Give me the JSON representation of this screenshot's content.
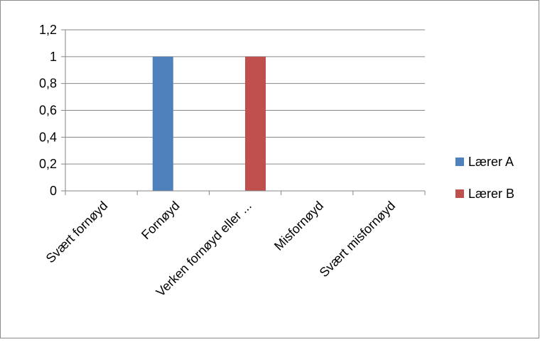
{
  "chart_data": {
    "type": "bar",
    "title": "",
    "xlabel": "",
    "ylabel": "",
    "categories": [
      "Svært fornøyd",
      "Fornøyd",
      "Verken fornøyd eller ...",
      "Misfornøyd",
      "Svært misfornøyd"
    ],
    "series": [
      {
        "name": "Lærer A",
        "color": "#4f81bd",
        "values": [
          0,
          1,
          0,
          0,
          0
        ]
      },
      {
        "name": "Lærer B",
        "color": "#c0504d",
        "values": [
          0,
          0,
          1,
          0,
          0
        ]
      }
    ],
    "ylim": [
      0,
      1.2
    ],
    "yticks": [
      "0",
      "0,2",
      "0,4",
      "0,6",
      "0,8",
      "1",
      "1,2"
    ],
    "grid": true,
    "legend_position": "right"
  }
}
